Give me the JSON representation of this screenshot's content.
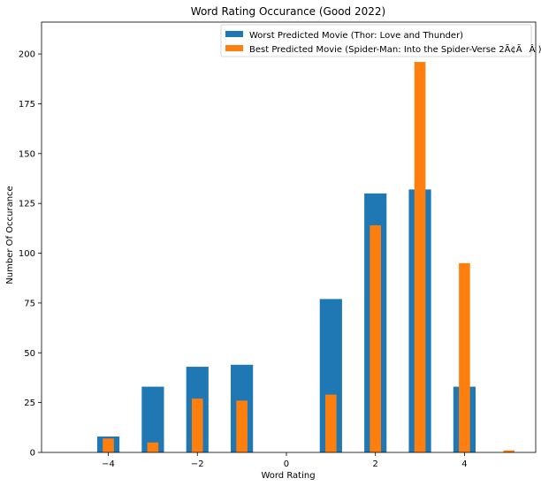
{
  "chart_data": {
    "type": "bar",
    "title": "Word Rating Occurance (Good 2022)",
    "xlabel": "Word Rating",
    "ylabel": "Number Of Occurance",
    "xlim": [
      -5.5,
      5.6
    ],
    "ylim": [
      0,
      216
    ],
    "xticks": [
      -4,
      -2,
      0,
      2,
      4
    ],
    "xtick_labels": [
      "−4",
      "−2",
      "0",
      "2",
      "4"
    ],
    "yticks": [
      0,
      25,
      50,
      75,
      100,
      125,
      150,
      175,
      200
    ],
    "grid": false,
    "legend_position": "top-right",
    "series": [
      {
        "name": "Worst Predicted Movie (Thor: Love and Thunder)",
        "color": "#1f77b4",
        "x": [
          -4,
          -3,
          -2,
          -1,
          0,
          1,
          2,
          3,
          4,
          5
        ],
        "values": [
          8,
          33,
          43,
          44,
          0,
          77,
          130,
          132,
          33,
          0
        ]
      },
      {
        "name": "Best Predicted Movie (Spider-Man: Into the Spider-Verse 2Ã¢ÃÂ )",
        "color": "#ff7f0e",
        "x": [
          -4,
          -3,
          -2,
          -1,
          0,
          1,
          2,
          3,
          4,
          5
        ],
        "values": [
          7,
          5,
          27,
          26,
          0,
          29,
          114,
          196,
          95,
          1
        ]
      }
    ]
  }
}
